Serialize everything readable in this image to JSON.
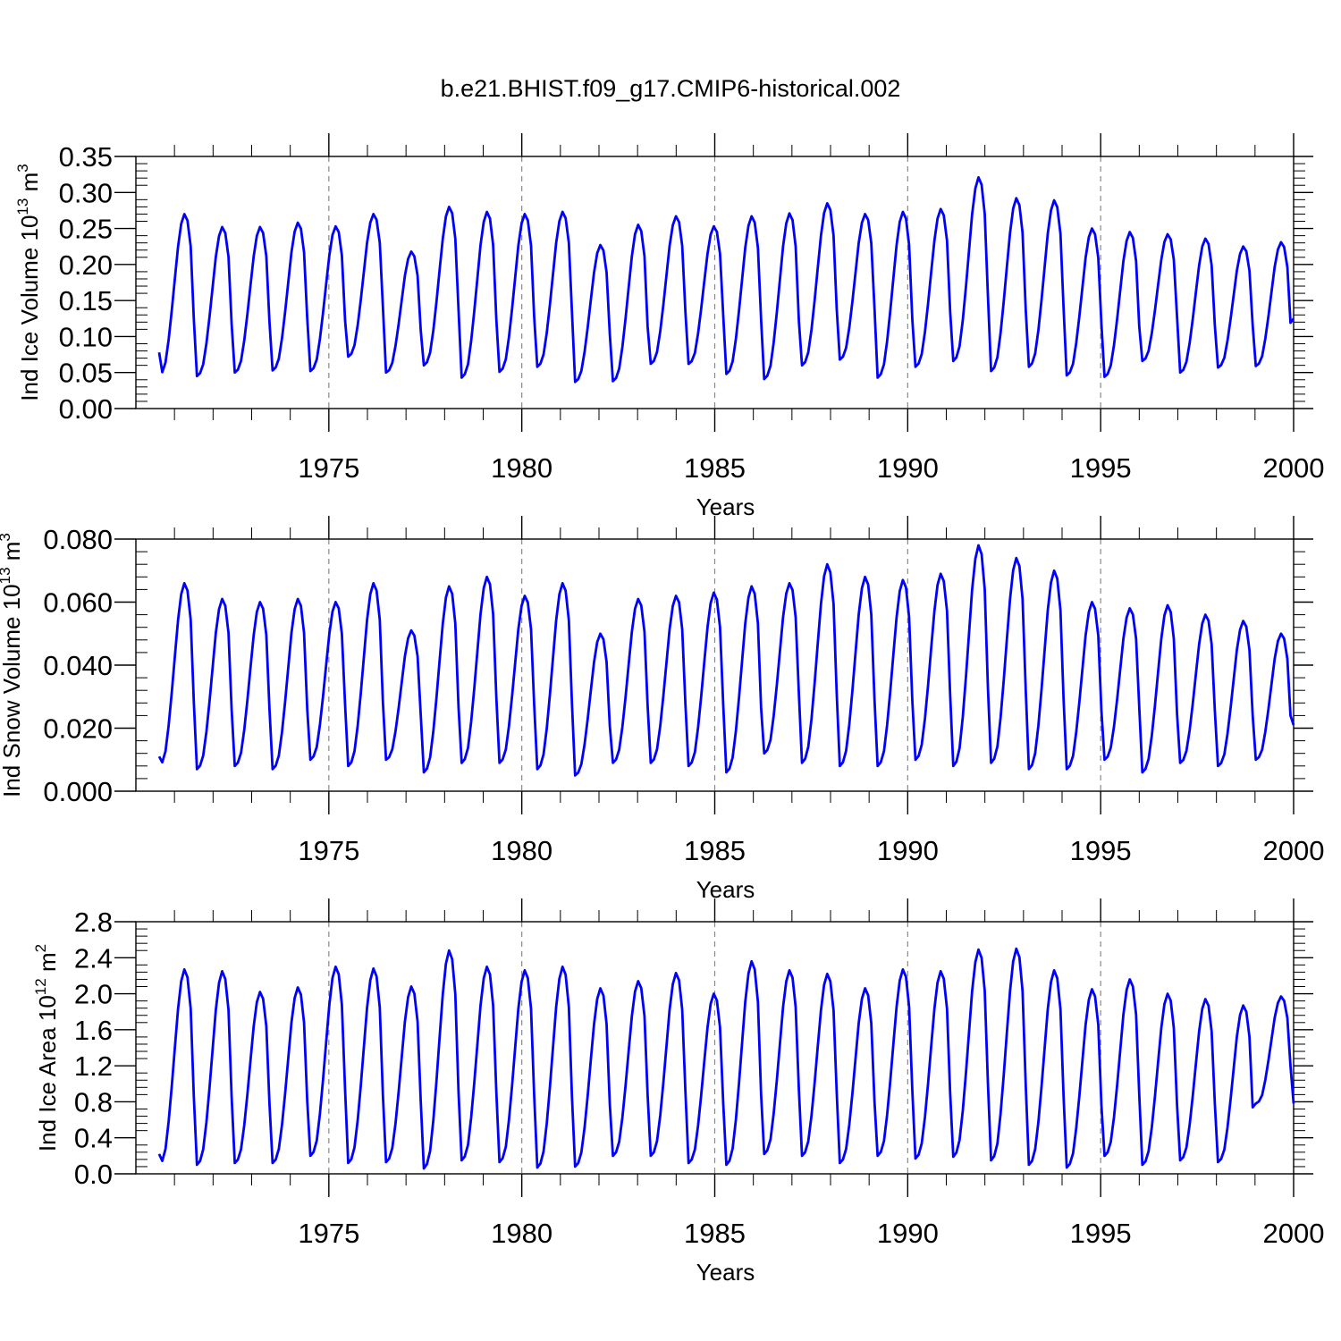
{
  "title": "b.e21.BHIST.f09_g17.CMIP6-historical.002",
  "chart_data": [
    {
      "type": "line",
      "ylabel": {
        "main": "Ind Ice Volume 10",
        "exp": "13",
        "unit": " m",
        "unit_exp": "3"
      },
      "xlabel": "Years",
      "xlim": [
        1970,
        2000
      ],
      "ylim": [
        0.0,
        0.35
      ],
      "yticks": [
        "0.00",
        "0.05",
        "0.10",
        "0.15",
        "0.20",
        "0.25",
        "0.30",
        "0.35"
      ],
      "xticks": [
        "1975",
        "1980",
        "1985",
        "1990",
        "1995",
        "2000"
      ],
      "series": [
        {
          "color": "#0000ff",
          "peaks": [
            0.27,
            0.252,
            0.252,
            0.258,
            0.253,
            0.27,
            0.218,
            0.28,
            0.273,
            0.27,
            0.273,
            0.227,
            0.255,
            0.267,
            0.253,
            0.267,
            0.271,
            0.285,
            0.27,
            0.273,
            0.277,
            0.321,
            0.292,
            0.289,
            0.25,
            0.245,
            0.242,
            0.236,
            0.225,
            0.231
          ],
          "troughs": [
            0.046,
            0.045,
            0.05,
            0.053,
            0.052,
            0.072,
            0.05,
            0.06,
            0.043,
            0.051,
            0.058,
            0.037,
            0.038,
            0.062,
            0.062,
            0.048,
            0.041,
            0.06,
            0.068,
            0.043,
            0.058,
            0.066,
            0.052,
            0.058,
            0.046,
            0.044,
            0.066,
            0.05,
            0.057,
            0.059
          ],
          "start": 0.078,
          "end": 0.125
        }
      ]
    },
    {
      "type": "line",
      "ylabel": {
        "main": "Ind Snow Volume 10",
        "exp": "13",
        "unit": " m",
        "unit_exp": "3"
      },
      "xlabel": "Years",
      "xlim": [
        1970,
        2000
      ],
      "ylim": [
        0.0,
        0.08
      ],
      "yticks": [
        "0.000",
        "0.020",
        "0.040",
        "0.060",
        "0.080"
      ],
      "xticks": [
        "1975",
        "1980",
        "1985",
        "1990",
        "1995",
        "2000"
      ],
      "series": [
        {
          "color": "#0000ff",
          "peaks": [
            0.066,
            0.061,
            0.06,
            0.061,
            0.06,
            0.066,
            0.051,
            0.065,
            0.068,
            0.062,
            0.066,
            0.05,
            0.061,
            0.062,
            0.063,
            0.065,
            0.066,
            0.072,
            0.068,
            0.067,
            0.069,
            0.078,
            0.074,
            0.07,
            0.06,
            0.058,
            0.059,
            0.056,
            0.054,
            0.05
          ],
          "troughs": [
            0.008,
            0.007,
            0.008,
            0.007,
            0.01,
            0.008,
            0.01,
            0.006,
            0.009,
            0.009,
            0.007,
            0.005,
            0.009,
            0.009,
            0.008,
            0.006,
            0.012,
            0.009,
            0.008,
            0.008,
            0.01,
            0.008,
            0.009,
            0.007,
            0.007,
            0.01,
            0.006,
            0.009,
            0.008,
            0.01
          ],
          "start": 0.011,
          "end": 0.021
        }
      ]
    },
    {
      "type": "line",
      "ylabel": {
        "main": "Ind Ice Area 10",
        "exp": "12",
        "unit": " m",
        "unit_exp": "2"
      },
      "xlabel": "Years",
      "xlim": [
        1970,
        2000
      ],
      "ylim": [
        0.0,
        2.8
      ],
      "yticks": [
        "0.0",
        "0.4",
        "0.8",
        "1.2",
        "1.6",
        "2.0",
        "2.4",
        "2.8"
      ],
      "xticks": [
        "1975",
        "1980",
        "1985",
        "1990",
        "1995",
        "2000"
      ],
      "series": [
        {
          "color": "#0000ff",
          "peaks": [
            2.27,
            2.25,
            2.02,
            2.07,
            2.3,
            2.28,
            2.08,
            2.48,
            2.3,
            2.26,
            2.3,
            2.06,
            2.14,
            2.23,
            2.0,
            2.36,
            2.26,
            2.22,
            2.06,
            2.27,
            2.25,
            2.49,
            2.5,
            2.26,
            2.05,
            2.16,
            2.0,
            1.94,
            1.87,
            1.97
          ],
          "troughs": [
            0.1,
            0.1,
            0.12,
            0.12,
            0.2,
            0.12,
            0.13,
            0.06,
            0.15,
            0.13,
            0.07,
            0.08,
            0.2,
            0.2,
            0.12,
            0.1,
            0.22,
            0.2,
            0.12,
            0.2,
            0.17,
            0.19,
            0.15,
            0.1,
            0.07,
            0.2,
            0.1,
            0.15,
            0.13,
            0.78
          ],
          "start": 0.22,
          "end": 0.78
        }
      ]
    }
  ]
}
